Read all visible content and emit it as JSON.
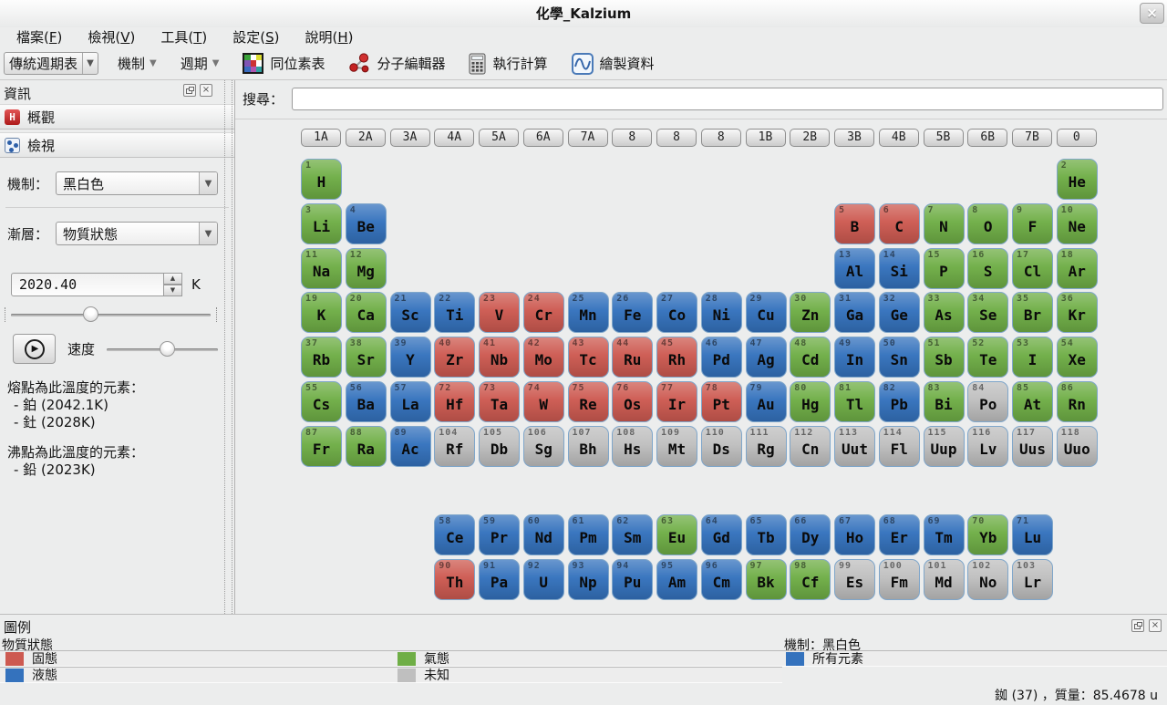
{
  "window": {
    "title": "化學_Kalzium",
    "close_glyph": "×"
  },
  "menu": {
    "items": [
      "檔案(F)",
      "檢視(V)",
      "工具(T)",
      "設定(S)",
      "說明(H)"
    ]
  },
  "toolbar": {
    "table_select_value": "傳統週期表",
    "scheme_button": "機制",
    "period_button": "週期",
    "isotope_button": "同位素表",
    "molecule_button": "分子編輯器",
    "calc_button": "執行計算",
    "plot_button": "繪製資料"
  },
  "sidebar": {
    "title": "資訊",
    "overview_tab": "概觀",
    "view_tab": "檢視",
    "overview_icon_letter": "H",
    "scheme_label": "機制：",
    "scheme_value": "黑白色",
    "gradient_label": "漸層：",
    "gradient_value": "物質狀態",
    "temperature_value": "2020.40",
    "temperature_unit": "K",
    "temperature_slider_percent": 40,
    "speed_label": "速度",
    "speed_slider_percent": 55,
    "play_glyph": "▶",
    "melting_title": "熔點為此溫度的元素：",
    "melting_items": [
      "- 鉑 (2042.1K)",
      "- 釷 (2028K)"
    ],
    "boiling_title": "沸點為此溫度的元素：",
    "boiling_items": [
      "- 鉛 (2023K)"
    ]
  },
  "search": {
    "label": "搜尋：",
    "value": ""
  },
  "table": {
    "group_headers": [
      "1A",
      "2A",
      "3A",
      "4A",
      "5A",
      "6A",
      "7A",
      "8",
      "8",
      "8",
      "1B",
      "2B",
      "3B",
      "4B",
      "5B",
      "6B",
      "7B",
      "0"
    ],
    "state_colors": {
      "solid": "#cd5a51",
      "liquid": "#3472bd",
      "gas": "#6fae46",
      "unknown": "#bfbfbf"
    },
    "elements": [
      {
        "n": 1,
        "s": "H",
        "r": "1",
        "c": 1,
        "st": "gas"
      },
      {
        "n": 2,
        "s": "He",
        "r": "1",
        "c": 18,
        "st": "gas"
      },
      {
        "n": 3,
        "s": "Li",
        "r": "2",
        "c": 1,
        "st": "gas"
      },
      {
        "n": 4,
        "s": "Be",
        "r": "2",
        "c": 2,
        "st": "liquid"
      },
      {
        "n": 5,
        "s": "B",
        "r": "2",
        "c": 13,
        "st": "solid"
      },
      {
        "n": 6,
        "s": "C",
        "r": "2",
        "c": 14,
        "st": "solid"
      },
      {
        "n": 7,
        "s": "N",
        "r": "2",
        "c": 15,
        "st": "gas"
      },
      {
        "n": 8,
        "s": "O",
        "r": "2",
        "c": 16,
        "st": "gas"
      },
      {
        "n": 9,
        "s": "F",
        "r": "2",
        "c": 17,
        "st": "gas"
      },
      {
        "n": 10,
        "s": "Ne",
        "r": "2",
        "c": 18,
        "st": "gas"
      },
      {
        "n": 11,
        "s": "Na",
        "r": "3",
        "c": 1,
        "st": "gas"
      },
      {
        "n": 12,
        "s": "Mg",
        "r": "3",
        "c": 2,
        "st": "gas"
      },
      {
        "n": 13,
        "s": "Al",
        "r": "3",
        "c": 13,
        "st": "liquid"
      },
      {
        "n": 14,
        "s": "Si",
        "r": "3",
        "c": 14,
        "st": "liquid"
      },
      {
        "n": 15,
        "s": "P",
        "r": "3",
        "c": 15,
        "st": "gas"
      },
      {
        "n": 16,
        "s": "S",
        "r": "3",
        "c": 16,
        "st": "gas"
      },
      {
        "n": 17,
        "s": "Cl",
        "r": "3",
        "c": 17,
        "st": "gas"
      },
      {
        "n": 18,
        "s": "Ar",
        "r": "3",
        "c": 18,
        "st": "gas"
      },
      {
        "n": 19,
        "s": "K",
        "r": "4",
        "c": 1,
        "st": "gas"
      },
      {
        "n": 20,
        "s": "Ca",
        "r": "4",
        "c": 2,
        "st": "gas"
      },
      {
        "n": 21,
        "s": "Sc",
        "r": "4",
        "c": 3,
        "st": "liquid"
      },
      {
        "n": 22,
        "s": "Ti",
        "r": "4",
        "c": 4,
        "st": "liquid"
      },
      {
        "n": 23,
        "s": "V",
        "r": "4",
        "c": 5,
        "st": "solid"
      },
      {
        "n": 24,
        "s": "Cr",
        "r": "4",
        "c": 6,
        "st": "solid"
      },
      {
        "n": 25,
        "s": "Mn",
        "r": "4",
        "c": 7,
        "st": "liquid"
      },
      {
        "n": 26,
        "s": "Fe",
        "r": "4",
        "c": 8,
        "st": "liquid"
      },
      {
        "n": 27,
        "s": "Co",
        "r": "4",
        "c": 9,
        "st": "liquid"
      },
      {
        "n": 28,
        "s": "Ni",
        "r": "4",
        "c": 10,
        "st": "liquid"
      },
      {
        "n": 29,
        "s": "Cu",
        "r": "4",
        "c": 11,
        "st": "liquid"
      },
      {
        "n": 30,
        "s": "Zn",
        "r": "4",
        "c": 12,
        "st": "gas"
      },
      {
        "n": 31,
        "s": "Ga",
        "r": "4",
        "c": 13,
        "st": "liquid"
      },
      {
        "n": 32,
        "s": "Ge",
        "r": "4",
        "c": 14,
        "st": "liquid"
      },
      {
        "n": 33,
        "s": "As",
        "r": "4",
        "c": 15,
        "st": "gas"
      },
      {
        "n": 34,
        "s": "Se",
        "r": "4",
        "c": 16,
        "st": "gas"
      },
      {
        "n": 35,
        "s": "Br",
        "r": "4",
        "c": 17,
        "st": "gas"
      },
      {
        "n": 36,
        "s": "Kr",
        "r": "4",
        "c": 18,
        "st": "gas"
      },
      {
        "n": 37,
        "s": "Rb",
        "r": "5",
        "c": 1,
        "st": "gas"
      },
      {
        "n": 38,
        "s": "Sr",
        "r": "5",
        "c": 2,
        "st": "gas"
      },
      {
        "n": 39,
        "s": "Y",
        "r": "5",
        "c": 3,
        "st": "liquid"
      },
      {
        "n": 40,
        "s": "Zr",
        "r": "5",
        "c": 4,
        "st": "solid"
      },
      {
        "n": 41,
        "s": "Nb",
        "r": "5",
        "c": 5,
        "st": "solid"
      },
      {
        "n": 42,
        "s": "Mo",
        "r": "5",
        "c": 6,
        "st": "solid"
      },
      {
        "n": 43,
        "s": "Tc",
        "r": "5",
        "c": 7,
        "st": "solid"
      },
      {
        "n": 44,
        "s": "Ru",
        "r": "5",
        "c": 8,
        "st": "solid"
      },
      {
        "n": 45,
        "s": "Rh",
        "r": "5",
        "c": 9,
        "st": "solid"
      },
      {
        "n": 46,
        "s": "Pd",
        "r": "5",
        "c": 10,
        "st": "liquid"
      },
      {
        "n": 47,
        "s": "Ag",
        "r": "5",
        "c": 11,
        "st": "liquid"
      },
      {
        "n": 48,
        "s": "Cd",
        "r": "5",
        "c": 12,
        "st": "gas"
      },
      {
        "n": 49,
        "s": "In",
        "r": "5",
        "c": 13,
        "st": "liquid"
      },
      {
        "n": 50,
        "s": "Sn",
        "r": "5",
        "c": 14,
        "st": "liquid"
      },
      {
        "n": 51,
        "s": "Sb",
        "r": "5",
        "c": 15,
        "st": "gas"
      },
      {
        "n": 52,
        "s": "Te",
        "r": "5",
        "c": 16,
        "st": "gas"
      },
      {
        "n": 53,
        "s": "I",
        "r": "5",
        "c": 17,
        "st": "gas"
      },
      {
        "n": 54,
        "s": "Xe",
        "r": "5",
        "c": 18,
        "st": "gas"
      },
      {
        "n": 55,
        "s": "Cs",
        "r": "6",
        "c": 1,
        "st": "gas"
      },
      {
        "n": 56,
        "s": "Ba",
        "r": "6",
        "c": 2,
        "st": "liquid"
      },
      {
        "n": 57,
        "s": "La",
        "r": "6",
        "c": 3,
        "st": "liquid"
      },
      {
        "n": 72,
        "s": "Hf",
        "r": "6",
        "c": 4,
        "st": "solid"
      },
      {
        "n": 73,
        "s": "Ta",
        "r": "6",
        "c": 5,
        "st": "solid"
      },
      {
        "n": 74,
        "s": "W",
        "r": "6",
        "c": 6,
        "st": "solid"
      },
      {
        "n": 75,
        "s": "Re",
        "r": "6",
        "c": 7,
        "st": "solid"
      },
      {
        "n": 76,
        "s": "Os",
        "r": "6",
        "c": 8,
        "st": "solid"
      },
      {
        "n": 77,
        "s": "Ir",
        "r": "6",
        "c": 9,
        "st": "solid"
      },
      {
        "n": 78,
        "s": "Pt",
        "r": "6",
        "c": 10,
        "st": "solid"
      },
      {
        "n": 79,
        "s": "Au",
        "r": "6",
        "c": 11,
        "st": "liquid"
      },
      {
        "n": 80,
        "s": "Hg",
        "r": "6",
        "c": 12,
        "st": "gas"
      },
      {
        "n": 81,
        "s": "Tl",
        "r": "6",
        "c": 13,
        "st": "gas"
      },
      {
        "n": 82,
        "s": "Pb",
        "r": "6",
        "c": 14,
        "st": "liquid"
      },
      {
        "n": 83,
        "s": "Bi",
        "r": "6",
        "c": 15,
        "st": "gas"
      },
      {
        "n": 84,
        "s": "Po",
        "r": "6",
        "c": 16,
        "st": "unknown"
      },
      {
        "n": 85,
        "s": "At",
        "r": "6",
        "c": 17,
        "st": "gas"
      },
      {
        "n": 86,
        "s": "Rn",
        "r": "6",
        "c": 18,
        "st": "gas"
      },
      {
        "n": 87,
        "s": "Fr",
        "r": "7",
        "c": 1,
        "st": "gas"
      },
      {
        "n": 88,
        "s": "Ra",
        "r": "7",
        "c": 2,
        "st": "gas"
      },
      {
        "n": 89,
        "s": "Ac",
        "r": "7",
        "c": 3,
        "st": "liquid"
      },
      {
        "n": 104,
        "s": "Rf",
        "r": "7",
        "c": 4,
        "st": "unknown"
      },
      {
        "n": 105,
        "s": "Db",
        "r": "7",
        "c": 5,
        "st": "unknown"
      },
      {
        "n": 106,
        "s": "Sg",
        "r": "7",
        "c": 6,
        "st": "unknown"
      },
      {
        "n": 107,
        "s": "Bh",
        "r": "7",
        "c": 7,
        "st": "unknown"
      },
      {
        "n": 108,
        "s": "Hs",
        "r": "7",
        "c": 8,
        "st": "unknown"
      },
      {
        "n": 109,
        "s": "Mt",
        "r": "7",
        "c": 9,
        "st": "unknown"
      },
      {
        "n": 110,
        "s": "Ds",
        "r": "7",
        "c": 10,
        "st": "unknown"
      },
      {
        "n": 111,
        "s": "Rg",
        "r": "7",
        "c": 11,
        "st": "unknown"
      },
      {
        "n": 112,
        "s": "Cn",
        "r": "7",
        "c": 12,
        "st": "unknown"
      },
      {
        "n": 113,
        "s": "Uut",
        "r": "7",
        "c": 13,
        "st": "unknown"
      },
      {
        "n": 114,
        "s": "Fl",
        "r": "7",
        "c": 14,
        "st": "unknown"
      },
      {
        "n": 115,
        "s": "Uup",
        "r": "7",
        "c": 15,
        "st": "unknown"
      },
      {
        "n": 116,
        "s": "Lv",
        "r": "7",
        "c": 16,
        "st": "unknown"
      },
      {
        "n": 117,
        "s": "Uus",
        "r": "7",
        "c": 17,
        "st": "unknown"
      },
      {
        "n": 118,
        "s": "Uuo",
        "r": "7",
        "c": 18,
        "st": "unknown"
      },
      {
        "n": 58,
        "s": "Ce",
        "r": "L",
        "c": 4,
        "st": "liquid"
      },
      {
        "n": 59,
        "s": "Pr",
        "r": "L",
        "c": 5,
        "st": "liquid"
      },
      {
        "n": 60,
        "s": "Nd",
        "r": "L",
        "c": 6,
        "st": "liquid"
      },
      {
        "n": 61,
        "s": "Pm",
        "r": "L",
        "c": 7,
        "st": "liquid"
      },
      {
        "n": 62,
        "s": "Sm",
        "r": "L",
        "c": 8,
        "st": "liquid"
      },
      {
        "n": 63,
        "s": "Eu",
        "r": "L",
        "c": 9,
        "st": "gas"
      },
      {
        "n": 64,
        "s": "Gd",
        "r": "L",
        "c": 10,
        "st": "liquid"
      },
      {
        "n": 65,
        "s": "Tb",
        "r": "L",
        "c": 11,
        "st": "liquid"
      },
      {
        "n": 66,
        "s": "Dy",
        "r": "L",
        "c": 12,
        "st": "liquid"
      },
      {
        "n": 67,
        "s": "Ho",
        "r": "L",
        "c": 13,
        "st": "liquid"
      },
      {
        "n": 68,
        "s": "Er",
        "r": "L",
        "c": 14,
        "st": "liquid"
      },
      {
        "n": 69,
        "s": "Tm",
        "r": "L",
        "c": 15,
        "st": "liquid"
      },
      {
        "n": 70,
        "s": "Yb",
        "r": "L",
        "c": 16,
        "st": "gas"
      },
      {
        "n": 71,
        "s": "Lu",
        "r": "L",
        "c": 17,
        "st": "liquid"
      },
      {
        "n": 90,
        "s": "Th",
        "r": "A",
        "c": 4,
        "st": "solid"
      },
      {
        "n": 91,
        "s": "Pa",
        "r": "A",
        "c": 5,
        "st": "liquid"
      },
      {
        "n": 92,
        "s": "U",
        "r": "A",
        "c": 6,
        "st": "liquid"
      },
      {
        "n": 93,
        "s": "Np",
        "r": "A",
        "c": 7,
        "st": "liquid"
      },
      {
        "n": 94,
        "s": "Pu",
        "r": "A",
        "c": 8,
        "st": "liquid"
      },
      {
        "n": 95,
        "s": "Am",
        "r": "A",
        "c": 9,
        "st": "liquid"
      },
      {
        "n": 96,
        "s": "Cm",
        "r": "A",
        "c": 10,
        "st": "liquid"
      },
      {
        "n": 97,
        "s": "Bk",
        "r": "A",
        "c": 11,
        "st": "gas"
      },
      {
        "n": 98,
        "s": "Cf",
        "r": "A",
        "c": 12,
        "st": "gas"
      },
      {
        "n": 99,
        "s": "Es",
        "r": "A",
        "c": 13,
        "st": "unknown"
      },
      {
        "n": 100,
        "s": "Fm",
        "r": "A",
        "c": 14,
        "st": "unknown"
      },
      {
        "n": 101,
        "s": "Md",
        "r": "A",
        "c": 15,
        "st": "unknown"
      },
      {
        "n": 102,
        "s": "No",
        "r": "A",
        "c": 16,
        "st": "unknown"
      },
      {
        "n": 103,
        "s": "Lr",
        "r": "A",
        "c": 17,
        "st": "unknown"
      }
    ]
  },
  "legend": {
    "title": "圖例",
    "subtitle": "物質狀態",
    "items": [
      {
        "label": "固態",
        "state": "solid"
      },
      {
        "label": "氣態",
        "state": "gas"
      },
      {
        "label": "液態",
        "state": "liquid"
      },
      {
        "label": "未知",
        "state": "unknown"
      }
    ],
    "scheme_label": "機制：黑白色",
    "scheme_item": {
      "label": "所有元素",
      "state": "liquid"
    }
  },
  "statusbar": {
    "text": "銣 (37) ，質量：85.4678 u"
  }
}
